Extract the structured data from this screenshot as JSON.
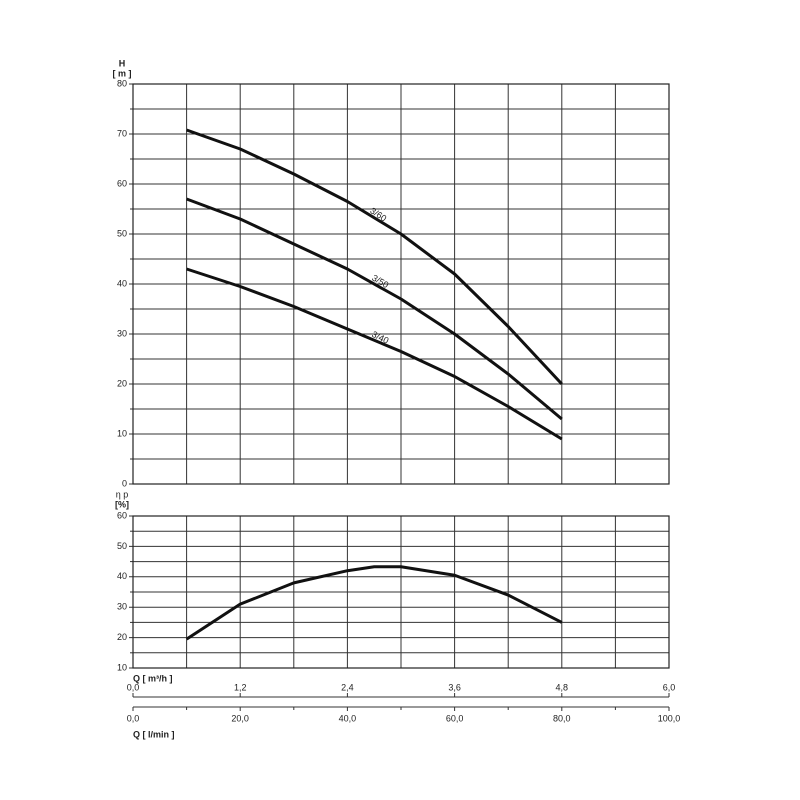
{
  "chart_data": [
    {
      "type": "line",
      "y_label": "H",
      "y_unit": "[ m ]",
      "xlim": [
        0,
        100
      ],
      "ylim": [
        0,
        80
      ],
      "yticks": [
        0,
        10,
        20,
        30,
        40,
        50,
        60,
        70,
        80
      ],
      "minor_yticks": [
        5,
        15,
        25,
        35,
        45,
        55,
        65,
        75
      ],
      "xgrid": [
        10,
        20,
        30,
        40,
        50,
        60,
        70,
        80,
        90
      ],
      "series": [
        {
          "name": "3/60",
          "color": "#111",
          "x": [
            10,
            20,
            30,
            40,
            50,
            60,
            70,
            80
          ],
          "values": [
            70.8,
            67,
            62,
            56.5,
            50,
            42,
            31.5,
            20
          ]
        },
        {
          "name": "3/50",
          "color": "#111",
          "x": [
            10,
            20,
            30,
            40,
            50,
            60,
            70,
            80
          ],
          "values": [
            57,
            53,
            48,
            43,
            37,
            30,
            22,
            13
          ]
        },
        {
          "name": "3/40",
          "color": "#111",
          "x": [
            10,
            20,
            30,
            40,
            50,
            60,
            70,
            80
          ],
          "values": [
            43,
            39.5,
            35.5,
            31,
            26.5,
            21.5,
            15.5,
            9
          ]
        }
      ]
    },
    {
      "type": "line",
      "y_label": "η p",
      "y_unit": "[%]",
      "xlim": [
        0,
        100
      ],
      "ylim": [
        10,
        60
      ],
      "yticks": [
        10,
        20,
        30,
        40,
        50,
        60
      ],
      "minor_yticks": [
        15,
        25,
        35,
        45,
        55
      ],
      "xgrid": [
        10,
        20,
        30,
        40,
        50,
        60,
        70,
        80,
        90
      ],
      "series": [
        {
          "name": null,
          "color": "#111",
          "x": [
            10,
            20,
            30,
            40,
            45,
            50,
            60,
            70,
            80
          ],
          "values": [
            19.5,
            31,
            38,
            42,
            43.3,
            43.3,
            40.5,
            34,
            25
          ]
        }
      ],
      "x2_label": "Q [ m³/h ]",
      "x2lim": [
        0,
        6
      ],
      "x2ticks": [
        {
          "value": 0,
          "label": "0,0"
        },
        {
          "value": 1.2,
          "label": "1,2"
        },
        {
          "value": 2.4,
          "label": "2,4"
        },
        {
          "value": 3.6,
          "label": "3,6"
        },
        {
          "value": 4.8,
          "label": "4,8"
        },
        {
          "value": 6,
          "label": "6,0"
        }
      ],
      "x_label": "Q [ l/min ]",
      "xticks": [
        {
          "value": 0,
          "label": "0,0"
        },
        {
          "value": 20,
          "label": "20,0"
        },
        {
          "value": 40,
          "label": "40,0"
        },
        {
          "value": 60,
          "label": "60,0"
        },
        {
          "value": 80,
          "label": "80,0"
        },
        {
          "value": 100,
          "label": "100,0"
        }
      ],
      "minor_xticks": [
        10,
        30,
        50,
        70,
        90
      ]
    }
  ]
}
